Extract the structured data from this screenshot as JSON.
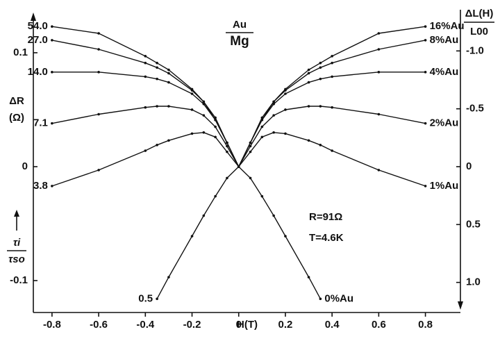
{
  "chart_data": {
    "type": "line",
    "title": "Au",
    "subtitle": "Mg",
    "x_label": "H(T)",
    "y_label": "ΔR",
    "y_label_unit": "(Ω)",
    "y2_label": "ΔL(H)",
    "y2_label_unit": "L00",
    "left_series_label": "τi",
    "left_series_label_unit": "τso",
    "annotations": [
      "R=91Ω",
      "T=4.6K"
    ],
    "x": [
      -0.8,
      -0.6,
      -0.4,
      -0.35,
      -0.3,
      -0.2,
      -0.15,
      -0.1,
      -0.05,
      0,
      0.05,
      0.1,
      0.15,
      0.2,
      0.3,
      0.35,
      0.4,
      0.6,
      0.8
    ],
    "xlim": [
      -0.88,
      0.95
    ],
    "xticks": [
      -0.8,
      -0.6,
      -0.4,
      -0.2,
      0,
      0.2,
      0.4,
      0.6,
      0.8
    ],
    "ylim": [
      -0.128,
      0.128
    ],
    "yticks": [
      -0.1,
      0,
      0.1
    ],
    "y2lim": [
      1.26,
      -1.26
    ],
    "y2ticks": [
      {
        "value": -1,
        "label": "-1.0"
      },
      {
        "value": -0.5,
        "label": "-0.5"
      },
      0,
      {
        "value": 0.5,
        "label": "0.5"
      },
      {
        "value": 1,
        "label": "1.0"
      }
    ],
    "series": [
      {
        "name": "16%Au",
        "left_label": "54.0",
        "color": "#111111",
        "values": [
          0.123,
          0.117,
          0.097,
          0.091,
          0.085,
          0.068,
          0.057,
          0.043,
          0.021,
          0,
          0.021,
          0.043,
          0.057,
          0.068,
          0.085,
          0.091,
          0.097,
          0.117,
          0.123
        ]
      },
      {
        "name": "8%Au",
        "left_label": "27.0",
        "color": "#111111",
        "values": [
          0.111,
          0.103,
          0.091,
          0.087,
          0.082,
          0.067,
          0.057,
          0.041,
          0.021,
          0,
          0.021,
          0.041,
          0.057,
          0.067,
          0.082,
          0.087,
          0.091,
          0.103,
          0.111
        ]
      },
      {
        "name": "4%Au",
        "left_label": "14.0",
        "color": "#111111",
        "values": [
          0.083,
          0.083,
          0.079,
          0.077,
          0.074,
          0.064,
          0.055,
          0.041,
          0.021,
          0,
          0.021,
          0.041,
          0.055,
          0.064,
          0.074,
          0.077,
          0.079,
          0.083,
          0.083
        ]
      },
      {
        "name": "2%Au",
        "left_label": "7.1",
        "color": "#111111",
        "values": [
          0.038,
          0.046,
          0.052,
          0.053,
          0.053,
          0.05,
          0.045,
          0.035,
          0.018,
          0,
          0.018,
          0.035,
          0.045,
          0.05,
          0.053,
          0.053,
          0.052,
          0.046,
          0.038
        ]
      },
      {
        "name": "1%Au",
        "left_label": "3.8",
        "color": "#111111",
        "values": [
          -0.017,
          -0.003,
          0.014,
          0.019,
          0.023,
          0.029,
          0.03,
          0.026,
          0.013,
          0,
          0.013,
          0.026,
          0.03,
          0.029,
          0.023,
          0.019,
          0.014,
          -0.003,
          -0.017
        ]
      },
      {
        "name": "0%Au",
        "left_label": "0.5",
        "color": "#111111",
        "values": [
          null,
          null,
          null,
          -0.116,
          -0.097,
          -0.061,
          -0.043,
          -0.026,
          -0.01,
          0,
          -0.01,
          -0.026,
          -0.043,
          -0.061,
          -0.097,
          -0.116,
          null,
          null,
          null
        ]
      }
    ]
  }
}
